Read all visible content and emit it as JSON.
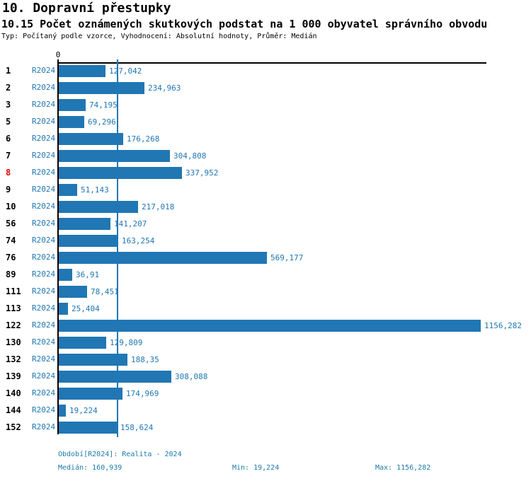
{
  "header": {
    "title": "10. Dopravní přestupky",
    "subtitle": "10.15 Počet oznámených skutkových podstat na 1 000 obyvatel správního obvodu",
    "meta": "Typ: Počítaný podle vzorce, Vyhodnocení: Absolutní hodnoty, Průměr: Medián"
  },
  "chart_data": {
    "type": "bar",
    "orientation": "horizontal",
    "title": "10.15 Počet oznámených skutkových podstat na 1 000 obyvatel správního obvodu",
    "axis_zero_label": "0",
    "series_label": "R2024",
    "categories": [
      "1",
      "2",
      "3",
      "5",
      "6",
      "7",
      "8",
      "9",
      "10",
      "56",
      "74",
      "76",
      "89",
      "111",
      "113",
      "122",
      "130",
      "132",
      "139",
      "140",
      "144",
      "152"
    ],
    "values": [
      127.042,
      234.963,
      74.195,
      69.296,
      176.268,
      304.808,
      337.952,
      51.143,
      217.018,
      141.207,
      163.254,
      569.177,
      36.91,
      78.451,
      25.404,
      1156.282,
      129.809,
      188.35,
      308.088,
      174.969,
      19.224,
      158.624
    ],
    "value_labels": [
      "127,042",
      "234,963",
      "74,195",
      "69,296",
      "176,268",
      "304,808",
      "337,952",
      "51,143",
      "217,018",
      "141,207",
      "163,254",
      "569,177",
      "36,91",
      "78,451",
      "25,404",
      "1156,282",
      "129,809",
      "188,35",
      "308,088",
      "174,969",
      "19,224",
      "158,624"
    ],
    "highlighted_category": "8",
    "median_value": 160.939,
    "min_value": 19.224,
    "max_value": 1156.282,
    "xlim": [
      0,
      1172
    ],
    "grid": false,
    "legend_position": "none",
    "colors": {
      "bar": "#2077b4",
      "value_label": "#2077b4",
      "series_label": "#2077b4",
      "median_line": "#2077b4",
      "highlight_category": "#e10000",
      "axis": "#000000",
      "footer_text": "#1c7aa8"
    }
  },
  "footer": {
    "period": "Období[R2024]: Realita - 2024",
    "median": "Medián: 160,939",
    "min": "Min: 19,224",
    "max": "Max: 1156,282"
  }
}
